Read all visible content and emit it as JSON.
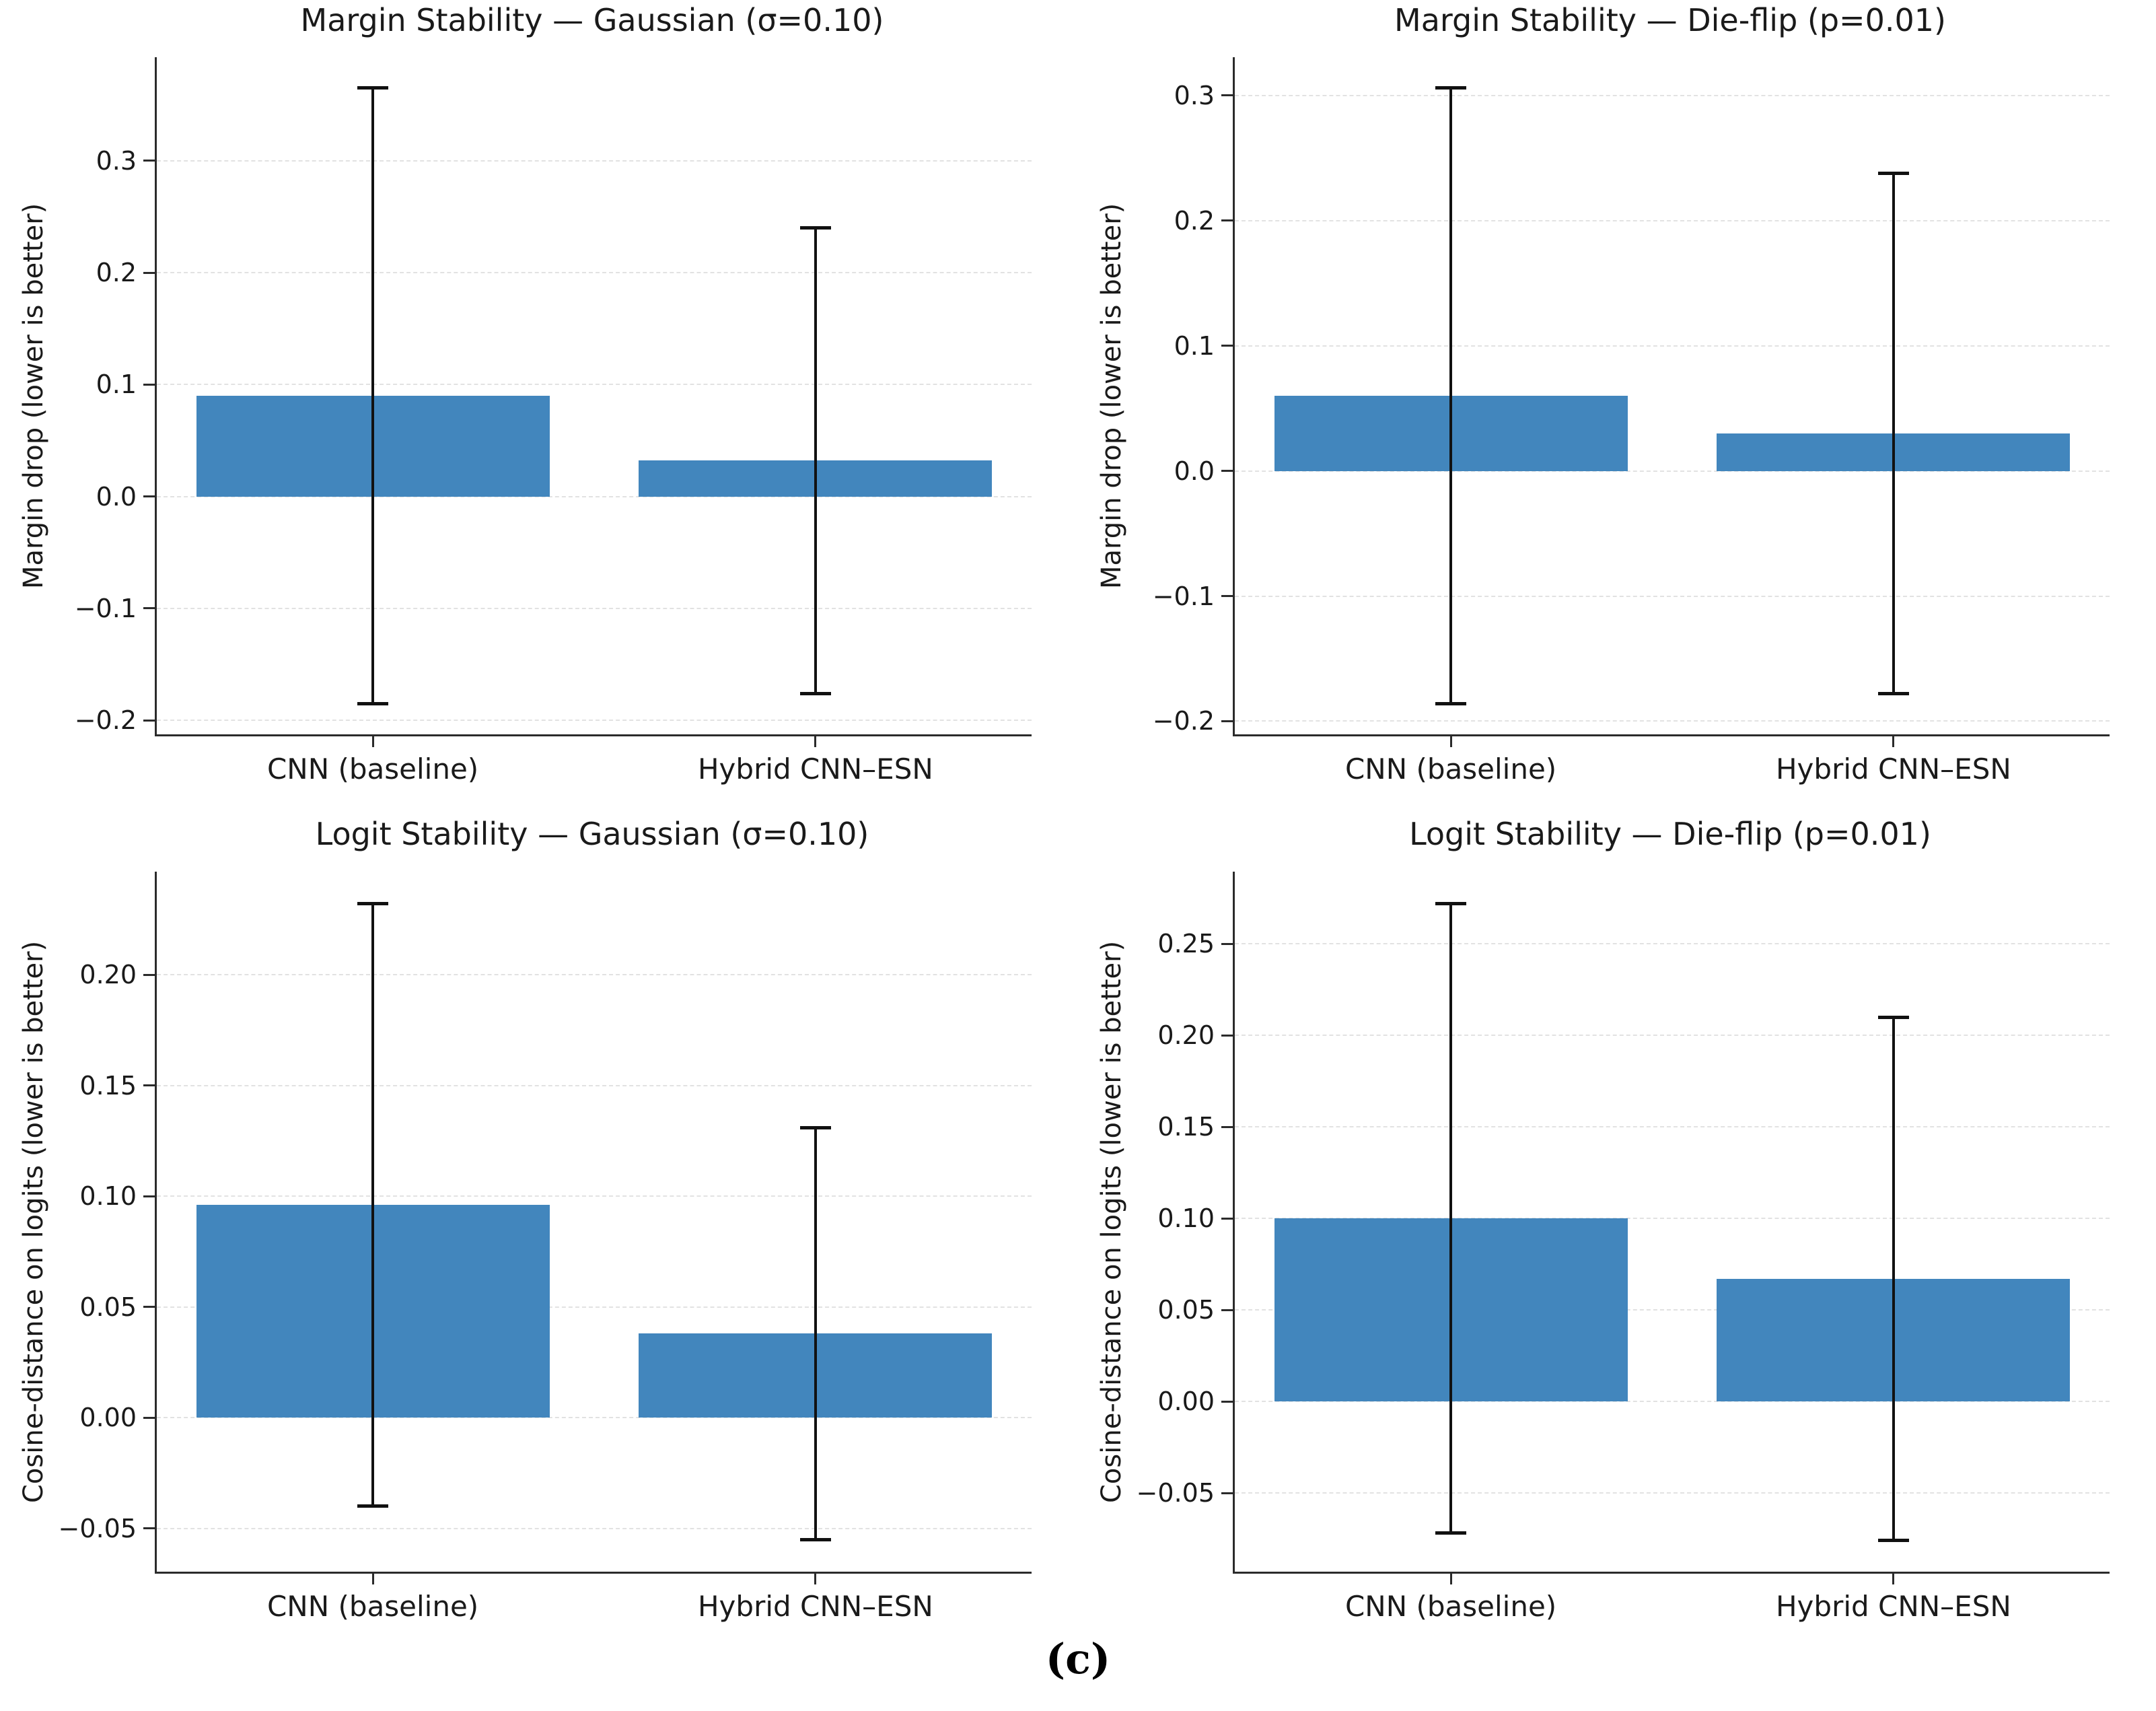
{
  "caption": "(c)",
  "colors": {
    "bar": "#4286BD",
    "error_bar": "#111111",
    "gridline": "#e2e2e2",
    "spine": "#2b2b2b"
  },
  "chart_data": [
    {
      "type": "bar",
      "title": "Margin Stability — Gaussian (σ=0.10)",
      "ylabel": "Margin drop (lower is better)",
      "xlabel": "",
      "categories": [
        "CNN (baseline)",
        "Hybrid CNN–ESN"
      ],
      "values": [
        0.09,
        0.032
      ],
      "error_low": [
        -0.185,
        -0.176
      ],
      "error_high": [
        0.365,
        0.24
      ],
      "yticks": [
        -0.2,
        -0.1,
        0.0,
        0.1,
        0.2,
        0.3
      ],
      "ytick_labels": [
        "−0.2",
        "−0.1",
        "0.0",
        "0.1",
        "0.2",
        "0.3"
      ],
      "ylim": [
        -0.2125,
        0.3925
      ],
      "grid": true,
      "legend_position": "none"
    },
    {
      "type": "bar",
      "title": "Margin Stability — Die-flip (p=0.01)",
      "ylabel": "Margin drop (lower is better)",
      "xlabel": "",
      "categories": [
        "CNN (baseline)",
        "Hybrid CNN–ESN"
      ],
      "values": [
        0.06,
        0.03
      ],
      "error_low": [
        -0.186,
        -0.178
      ],
      "error_high": [
        0.306,
        0.238
      ],
      "yticks": [
        -0.2,
        -0.1,
        0.0,
        0.1,
        0.2,
        0.3
      ],
      "ytick_labels": [
        "−0.2",
        "−0.1",
        "0.0",
        "0.1",
        "0.2",
        "0.3"
      ],
      "ylim": [
        -0.2105,
        0.3305
      ],
      "grid": true,
      "legend_position": "none"
    },
    {
      "type": "bar",
      "title": "Logit Stability — Gaussian (σ=0.10)",
      "ylabel": "Cosine-distance on logits (lower is better)",
      "xlabel": "",
      "categories": [
        "CNN (baseline)",
        "Hybrid CNN–ESN"
      ],
      "values": [
        0.096,
        0.038
      ],
      "error_low": [
        -0.04,
        -0.055
      ],
      "error_high": [
        0.232,
        0.131
      ],
      "yticks": [
        -0.05,
        0.0,
        0.05,
        0.1,
        0.15,
        0.2
      ],
      "ytick_labels": [
        "−0.05",
        "0.00",
        "0.05",
        "0.10",
        "0.15",
        "0.20"
      ],
      "ylim": [
        -0.0695,
        0.2465
      ],
      "grid": true,
      "legend_position": "none"
    },
    {
      "type": "bar",
      "title": "Logit Stability — Die-flip (p=0.01)",
      "ylabel": "Cosine-distance on logits (lower is better)",
      "xlabel": "",
      "categories": [
        "CNN (baseline)",
        "Hybrid CNN–ESN"
      ],
      "values": [
        0.1,
        0.067
      ],
      "error_low": [
        -0.072,
        -0.076
      ],
      "error_high": [
        0.272,
        0.21
      ],
      "yticks": [
        -0.05,
        0.0,
        0.05,
        0.1,
        0.15,
        0.2,
        0.25
      ],
      "ytick_labels": [
        "−0.05",
        "0.00",
        "0.05",
        "0.10",
        "0.15",
        "0.20",
        "0.25"
      ],
      "ylim": [
        -0.093,
        0.2895
      ],
      "grid": true,
      "legend_position": "none"
    }
  ]
}
